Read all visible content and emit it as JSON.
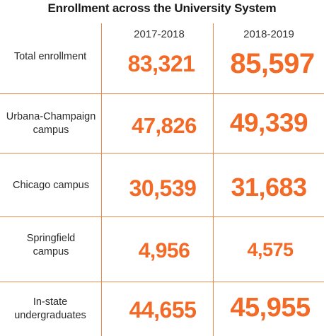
{
  "chart_data": {
    "type": "table",
    "title": "Enrollment across the University System",
    "columns": [
      "2017-2018",
      "2018-2019"
    ],
    "rows": [
      {
        "label": "Total enrollment",
        "values": [
          83321,
          85597
        ],
        "display": [
          "83,321",
          "85,597"
        ]
      },
      {
        "label": "Urbana-Champaign campus",
        "values": [
          47826,
          49339
        ],
        "display": [
          "47,826",
          "49,339"
        ]
      },
      {
        "label": "Chicago campus",
        "values": [
          30539,
          31683
        ],
        "display": [
          "30,539",
          "31,683"
        ]
      },
      {
        "label": "Springfield campus",
        "values": [
          4956,
          4575
        ],
        "display": [
          "4,956",
          "4,575"
        ]
      },
      {
        "label": "In-state undergraduates",
        "values": [
          44655,
          45955
        ],
        "display": [
          "44,655",
          "45,955"
        ]
      }
    ],
    "colors": {
      "accent": "#f26a26",
      "rule": "#e9894f",
      "text": "#2a2a2a"
    }
  }
}
